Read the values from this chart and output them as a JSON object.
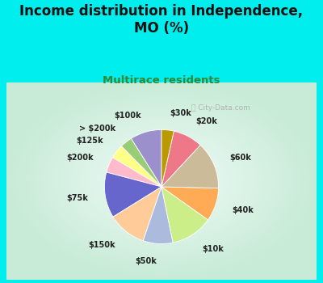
{
  "title": "Income distribution in Independence,\nMO (%)",
  "subtitle": "Multirace residents",
  "title_color": "#111111",
  "subtitle_color": "#338833",
  "bg_color": "#00eeee",
  "chart_bg_center": "#f0faf5",
  "chart_bg_edge": "#c8edd8",
  "watermark": "ⓘ City-Data.com",
  "labels": [
    "$100k",
    "> $200k",
    "$125k",
    "$200k",
    "$75k",
    "$150k",
    "$50k",
    "$10k",
    "$40k",
    "$60k",
    "$20k",
    "$30k"
  ],
  "values": [
    9.0,
    3.5,
    4.0,
    4.5,
    13.0,
    11.0,
    8.5,
    12.0,
    9.5,
    13.5,
    8.5,
    3.5
  ],
  "colors": [
    "#9b8fcc",
    "#99cc77",
    "#ffff88",
    "#ffbbcc",
    "#6666cc",
    "#ffcc99",
    "#aabbdd",
    "#ccee88",
    "#ffaa55",
    "#ccbb99",
    "#ee7788",
    "#bb9900"
  ],
  "startangle": 90,
  "label_colors": [
    "#9b8fcc",
    "#99cc77",
    "#ffff88",
    "#dd8888",
    "#8888ee",
    "#ffcc99",
    "#aabbdd",
    "#ccee88",
    "#ffaa55",
    "#ccbb99",
    "#ee7788",
    "#bb9900"
  ],
  "figsize": [
    4.0,
    3.5
  ],
  "dpi": 100,
  "title_fontsize": 12,
  "subtitle_fontsize": 9.5,
  "label_fontsize": 7.0
}
